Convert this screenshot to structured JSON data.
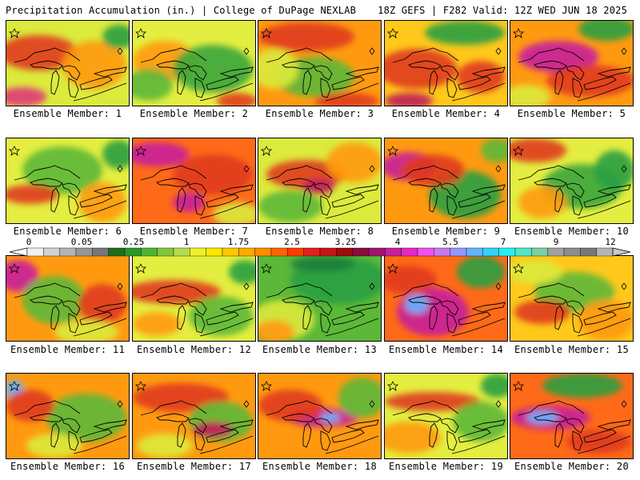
{
  "header": {
    "left": "Precipitation Accumulation (in.) | College of DuPage NEXLAB",
    "right": "18Z GEFS | F282 Valid: 12Z WED JUN 18 2025"
  },
  "colorbar": {
    "labels": [
      "0",
      "0.05",
      "0.25",
      "1",
      "1.75",
      "2.5",
      "3.25",
      "4",
      "5.5",
      "7",
      "9",
      "12"
    ],
    "colors": [
      "#f0f0f0",
      "#d2d2d2",
      "#b4b4b4",
      "#969696",
      "#787878",
      "#1e6e1e",
      "#28962a",
      "#50b432",
      "#82c83c",
      "#b4dc50",
      "#f0f028",
      "#ffe600",
      "#ffc800",
      "#ffaa00",
      "#ff8c00",
      "#ff6400",
      "#ff3c00",
      "#e61e1e",
      "#c81414",
      "#a00a0a",
      "#8c0a3c",
      "#a0146e",
      "#c81e9b",
      "#e628c8",
      "#f050f0",
      "#c878f0",
      "#9696ff",
      "#64b4ff",
      "#32d2ff",
      "#28f0f0",
      "#50e6c8",
      "#78d2a0",
      "#a0a0a0",
      "#8c8c8c",
      "#787878",
      "#b4b4b4"
    ]
  },
  "panels": [
    {
      "label": "Ensemble Member: 1",
      "base": "#dcea3c",
      "blobs": [
        [
          "#e03a1c",
          40,
          40,
          50,
          22
        ],
        [
          "#ff9a10",
          110,
          55,
          40,
          30
        ],
        [
          "#e0367a",
          20,
          95,
          30,
          12
        ],
        [
          "#28a040",
          140,
          20,
          20,
          15
        ]
      ]
    },
    {
      "label": "Ensemble Member: 2",
      "base": "#e4ee40",
      "blobs": [
        [
          "#ff9a10",
          40,
          50,
          40,
          25
        ],
        [
          "#3aa63a",
          100,
          60,
          50,
          30
        ],
        [
          "#5cb838",
          20,
          80,
          30,
          20
        ],
        [
          "#e03a1c",
          130,
          100,
          25,
          10
        ]
      ]
    },
    {
      "label": "Ensemble Member: 3",
      "base": "#ff9a10",
      "blobs": [
        [
          "#e03a1c",
          60,
          20,
          60,
          18
        ],
        [
          "#5cb838",
          70,
          70,
          50,
          25
        ],
        [
          "#dcea3c",
          20,
          60,
          30,
          25
        ],
        [
          "#e03a1c",
          110,
          100,
          40,
          10
        ]
      ]
    },
    {
      "label": "Ensemble Member: 4",
      "base": "#ffc81a",
      "blobs": [
        [
          "#e03a1c",
          40,
          60,
          50,
          25
        ],
        [
          "#28a040",
          100,
          15,
          50,
          15
        ],
        [
          "#c01e5a",
          30,
          100,
          30,
          10
        ],
        [
          "#e03a1c",
          120,
          70,
          30,
          20
        ]
      ]
    },
    {
      "label": "Ensemble Member: 5",
      "base": "#ff9a10",
      "blobs": [
        [
          "#c81e9b",
          60,
          45,
          50,
          20
        ],
        [
          "#e03a1c",
          100,
          75,
          55,
          20
        ],
        [
          "#28a040",
          120,
          10,
          35,
          15
        ],
        [
          "#dcea3c",
          20,
          95,
          30,
          15
        ]
      ]
    },
    {
      "label": "Ensemble Member: 6",
      "base": "#e4ee40",
      "blobs": [
        [
          "#5cb838",
          70,
          40,
          50,
          30
        ],
        [
          "#e03a1c",
          30,
          70,
          35,
          12
        ],
        [
          "#ff9a10",
          120,
          80,
          30,
          25
        ],
        [
          "#28a040",
          140,
          20,
          20,
          18
        ]
      ]
    },
    {
      "label": "Ensemble Member: 7",
      "base": "#ff6a18",
      "blobs": [
        [
          "#c81e9b",
          30,
          20,
          40,
          15
        ],
        [
          "#c81e9b",
          70,
          80,
          20,
          12
        ],
        [
          "#e03a1c",
          100,
          45,
          50,
          25
        ],
        [
          "#dcea3c",
          130,
          95,
          30,
          15
        ]
      ]
    },
    {
      "label": "Ensemble Member: 8",
      "base": "#dcea3c",
      "blobs": [
        [
          "#e03a1c",
          60,
          45,
          50,
          18
        ],
        [
          "#c01e5a",
          75,
          60,
          20,
          10
        ],
        [
          "#5cb838",
          40,
          85,
          40,
          20
        ],
        [
          "#ff9a10",
          120,
          30,
          35,
          25
        ]
      ]
    },
    {
      "label": "Ensemble Member: 9",
      "base": "#ff9a10",
      "blobs": [
        [
          "#c81e9b",
          30,
          35,
          35,
          18
        ],
        [
          "#28a040",
          100,
          70,
          45,
          30
        ],
        [
          "#e03a1c",
          60,
          40,
          40,
          20
        ],
        [
          "#5cb838",
          140,
          15,
          20,
          15
        ]
      ]
    },
    {
      "label": "Ensemble Member: 10",
      "base": "#e4ee40",
      "blobs": [
        [
          "#e03a1c",
          30,
          15,
          40,
          15
        ],
        [
          "#3aa63a",
          90,
          60,
          50,
          28
        ],
        [
          "#ff9a10",
          40,
          80,
          30,
          20
        ],
        [
          "#28a040",
          130,
          40,
          25,
          25
        ]
      ]
    },
    {
      "label": "Ensemble Member: 11",
      "base": "#ff9a10",
      "blobs": [
        [
          "#c81e9b",
          15,
          25,
          25,
          20
        ],
        [
          "#5cb838",
          60,
          55,
          40,
          30
        ],
        [
          "#e03a1c",
          120,
          60,
          30,
          25
        ],
        [
          "#dcea3c",
          100,
          95,
          40,
          15
        ]
      ]
    },
    {
      "label": "Ensemble Member: 12",
      "base": "#e4ee40",
      "blobs": [
        [
          "#e03a1c",
          50,
          45,
          60,
          15
        ],
        [
          "#5cb838",
          110,
          75,
          40,
          25
        ],
        [
          "#ff9a10",
          30,
          85,
          30,
          15
        ],
        [
          "#28a040",
          140,
          20,
          20,
          15
        ]
      ]
    },
    {
      "label": "Ensemble Member: 13",
      "base": "#5cb838",
      "blobs": [
        [
          "#28a040",
          100,
          30,
          60,
          30
        ],
        [
          "#dcea3c",
          30,
          80,
          40,
          25
        ],
        [
          "#ff9a10",
          20,
          95,
          25,
          15
        ],
        [
          "#1e7e3a",
          80,
          10,
          40,
          10
        ]
      ]
    },
    {
      "label": "Ensemble Member: 14",
      "base": "#ff6a18",
      "blobs": [
        [
          "#c81e9b",
          60,
          70,
          45,
          30
        ],
        [
          "#64b4ff",
          40,
          60,
          15,
          12
        ],
        [
          "#e03a1c",
          30,
          30,
          35,
          18
        ],
        [
          "#28a040",
          120,
          20,
          30,
          20
        ]
      ]
    },
    {
      "label": "Ensemble Member: 15",
      "base": "#ffc81a",
      "blobs": [
        [
          "#5cb838",
          80,
          45,
          50,
          25
        ],
        [
          "#e03a1c",
          40,
          70,
          35,
          15
        ],
        [
          "#ff9a10",
          120,
          80,
          35,
          25
        ],
        [
          "#dcea3c",
          30,
          20,
          35,
          15
        ]
      ]
    },
    {
      "label": "Ensemble Member: 16",
      "base": "#ff9a10",
      "blobs": [
        [
          "#64b4ff",
          10,
          20,
          12,
          12
        ],
        [
          "#5cb838",
          100,
          55,
          50,
          30
        ],
        [
          "#e03a1c",
          30,
          40,
          30,
          20
        ],
        [
          "#dcea3c",
          60,
          90,
          35,
          15
        ]
      ]
    },
    {
      "label": "Ensemble Member: 17",
      "base": "#ff9a10",
      "blobs": [
        [
          "#e03a1c",
          60,
          30,
          60,
          18
        ],
        [
          "#5cb838",
          110,
          60,
          40,
          25
        ],
        [
          "#dcea3c",
          40,
          90,
          35,
          15
        ],
        [
          "#c01e5a",
          100,
          70,
          25,
          10
        ]
      ]
    },
    {
      "label": "Ensemble Member: 18",
      "base": "#ff9a10",
      "blobs": [
        [
          "#c81e9b",
          80,
          55,
          45,
          12
        ],
        [
          "#64b4ff",
          90,
          55,
          12,
          6
        ],
        [
          "#5cb838",
          130,
          30,
          30,
          25
        ],
        [
          "#e03a1c",
          40,
          40,
          40,
          20
        ]
      ]
    },
    {
      "label": "Ensemble Member: 19",
      "base": "#e4ee40",
      "blobs": [
        [
          "#e03a1c",
          60,
          35,
          60,
          12
        ],
        [
          "#ff9a10",
          30,
          80,
          40,
          20
        ],
        [
          "#5cb838",
          120,
          60,
          35,
          25
        ],
        [
          "#28a040",
          140,
          15,
          20,
          15
        ]
      ]
    },
    {
      "label": "Ensemble Member: 20",
      "base": "#ff6a18",
      "blobs": [
        [
          "#c81e9b",
          50,
          55,
          50,
          15
        ],
        [
          "#64b4ff",
          40,
          55,
          20,
          8
        ],
        [
          "#e03a1c",
          110,
          85,
          40,
          15
        ],
        [
          "#28a040",
          90,
          15,
          50,
          15
        ]
      ]
    }
  ]
}
